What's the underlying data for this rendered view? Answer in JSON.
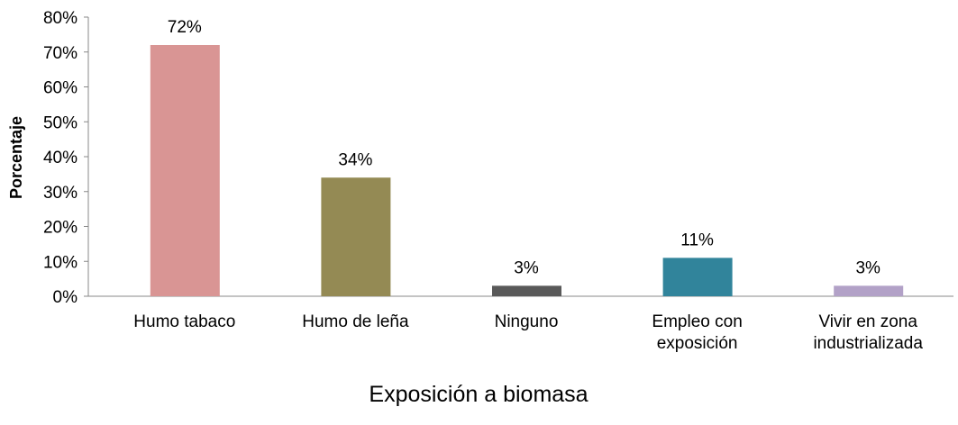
{
  "chart_data": {
    "type": "bar",
    "categories": [
      "Humo tabaco",
      "Humo de leña",
      "Ninguno",
      "Empleo con exposición",
      "Vivir en zona industrializada"
    ],
    "values": [
      72,
      34,
      3,
      11,
      3
    ],
    "value_labels": [
      "72%",
      "34%",
      "3%",
      "11%",
      "3%"
    ],
    "colors": [
      "#d99594",
      "#948a54",
      "#595959",
      "#31849b",
      "#b2a1c7"
    ],
    "ylabel": "Porcentaje",
    "xlabel": "Exposición a biomasa",
    "ylim": [
      0,
      80
    ],
    "yticks": [
      {
        "value": 0,
        "label": "0%"
      },
      {
        "value": 10,
        "label": "10%"
      },
      {
        "value": 20,
        "label": "20%"
      },
      {
        "value": 30,
        "label": "30%"
      },
      {
        "value": 40,
        "label": "40%"
      },
      {
        "value": 50,
        "label": "50%"
      },
      {
        "value": 60,
        "label": "60%"
      },
      {
        "value": 70,
        "label": "70%"
      },
      {
        "value": 80,
        "label": "80%"
      }
    ],
    "grid": false
  }
}
